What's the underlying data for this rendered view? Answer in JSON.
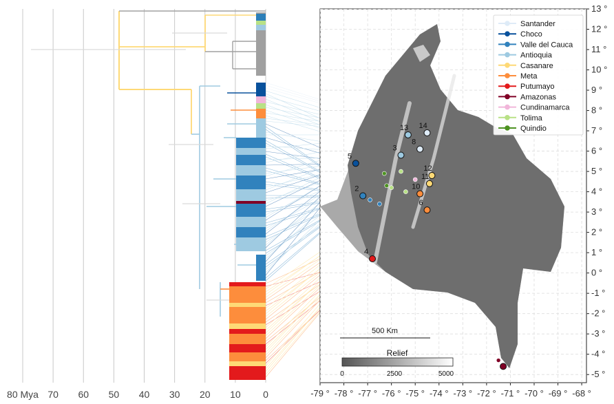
{
  "chart_data": [
    {
      "type": "tree-timeline",
      "xaxis_ticks": [
        {
          "value": 80,
          "label": "80 Mya"
        },
        {
          "value": 70,
          "label": "70"
        },
        {
          "value": 60,
          "label": "60"
        },
        {
          "value": 50,
          "label": "50"
        },
        {
          "value": 40,
          "label": "40"
        },
        {
          "value": 30,
          "label": "30"
        },
        {
          "value": 20,
          "label": "20"
        },
        {
          "value": 10,
          "label": "10"
        },
        {
          "value": 0,
          "label": "0"
        }
      ],
      "xlim": [
        87,
        0
      ],
      "grid": true
    },
    {
      "type": "map",
      "xlim": [
        -79,
        -67.8
      ],
      "ylim": [
        -5.4,
        13
      ],
      "x_ticks": [
        {
          "value": -79,
          "label": "-79 °"
        },
        {
          "value": -78,
          "label": "-78 °"
        },
        {
          "value": -77,
          "label": "-77 °"
        },
        {
          "value": -76,
          "label": "-76 °"
        },
        {
          "value": -75,
          "label": "-75 °"
        },
        {
          "value": -74,
          "label": "-74 °"
        },
        {
          "value": -73,
          "label": "-73 °"
        },
        {
          "value": -72,
          "label": "-72 °"
        },
        {
          "value": -71,
          "label": "-71 °"
        },
        {
          "value": -70,
          "label": "-70 °"
        },
        {
          "value": -69,
          "label": "-69 °"
        },
        {
          "value": -68,
          "label": "-68 °"
        }
      ],
      "y_ticks": [
        {
          "value": 13,
          "label": "13 °"
        },
        {
          "value": 12,
          "label": "12 °"
        },
        {
          "value": 11,
          "label": "11 °"
        },
        {
          "value": 10,
          "label": "10 °"
        },
        {
          "value": 9,
          "label": "9 °"
        },
        {
          "value": 8,
          "label": "8 °"
        },
        {
          "value": 7,
          "label": "7 °"
        },
        {
          "value": 6,
          "label": "6 °"
        },
        {
          "value": 5,
          "label": "5 °"
        },
        {
          "value": 4,
          "label": "4 °"
        },
        {
          "value": 3,
          "label": "3 °"
        },
        {
          "value": 2,
          "label": "2 °"
        },
        {
          "value": 1,
          "label": "1 °"
        },
        {
          "value": 0,
          "label": "0 °"
        },
        {
          "value": -1,
          "label": "-1 °"
        },
        {
          "value": -2,
          "label": "-2 °"
        },
        {
          "value": -3,
          "label": "-3 °"
        },
        {
          "value": -4,
          "label": "-4 °"
        },
        {
          "value": -5,
          "label": "-5 °"
        }
      ],
      "grid": true,
      "legend_placement": "top-right",
      "legend": [
        {
          "name": "Santander",
          "color": "#deebf7"
        },
        {
          "name": "Choco",
          "color": "#08519c"
        },
        {
          "name": "Valle del Cauca",
          "color": "#3182bd"
        },
        {
          "name": "Antioquia",
          "color": "#9ecae1"
        },
        {
          "name": "Casanare",
          "color": "#fed976"
        },
        {
          "name": "Meta",
          "color": "#fd8d3c"
        },
        {
          "name": "Putumayo",
          "color": "#e31a1c"
        },
        {
          "name": "Amazonas",
          "color": "#800026"
        },
        {
          "name": "Cundinamarca",
          "color": "#f1b6da"
        },
        {
          "name": "Tolima",
          "color": "#b8e186"
        },
        {
          "name": "Quindio",
          "color": "#4d9221"
        }
      ],
      "sites": [
        {
          "label": "14",
          "lon": -74.5,
          "lat": 6.9,
          "color": "#deebf7"
        },
        {
          "label": "13",
          "lon": -75.3,
          "lat": 6.8,
          "color": "#9ecae1"
        },
        {
          "label": "8",
          "lon": -74.8,
          "lat": 6.1,
          "color": "#deebf7"
        },
        {
          "label": "3",
          "lon": -75.6,
          "lat": 5.8,
          "color": "#9ecae1"
        },
        {
          "label": "5",
          "lon": -77.5,
          "lat": 5.4,
          "color": "#08519c"
        },
        {
          "label": "2",
          "lon": -77.2,
          "lat": 3.8,
          "color": "#3182bd"
        },
        {
          "label": "12",
          "lon": -74.3,
          "lat": 4.8,
          "color": "#fed976"
        },
        {
          "label": "11",
          "lon": -74.4,
          "lat": 4.4,
          "color": "#fed976"
        },
        {
          "label": "10",
          "lon": -74.8,
          "lat": 3.9,
          "color": "#fd8d3c"
        },
        {
          "label": "6",
          "lon": -74.5,
          "lat": 3.1,
          "color": "#fd8d3c"
        },
        {
          "label": "4",
          "lon": -76.8,
          "lat": 0.7,
          "color": "#e31a1c"
        },
        {
          "label": "",
          "lon": -71.3,
          "lat": -4.6,
          "color": "#800026"
        }
      ],
      "scale_bar": {
        "label": "500 Km"
      },
      "colorbar": {
        "title": "Relief",
        "ticks": [
          "0",
          "2500",
          "5000"
        ]
      }
    }
  ]
}
